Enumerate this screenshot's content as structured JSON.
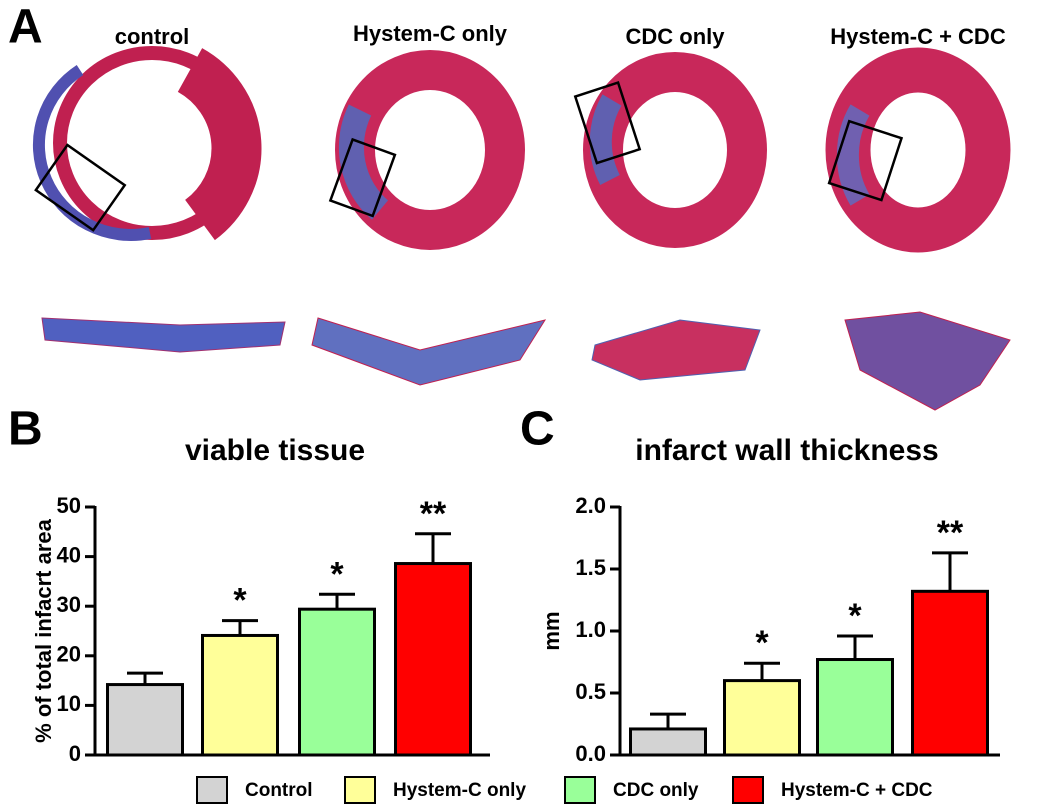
{
  "panel_a": {
    "panel_label": "A",
    "labels": [
      "control",
      "Hystem-C only",
      "CDC only",
      "Hystem-C + CDC"
    ]
  },
  "legend": [
    {
      "name": "Control",
      "color": "#d3d3d3"
    },
    {
      "name": "Hystem-C only",
      "color": "#ffff99"
    },
    {
      "name": "CDC only",
      "color": "#99ff99"
    },
    {
      "name": "Hystem-C + CDC",
      "color": "#ff0000"
    }
  ],
  "chart_data": [
    {
      "type": "bar",
      "panel_label": "B",
      "title": "viable tissue",
      "y_label": "% of total infacrt area",
      "values": [
        14.2,
        24.1,
        29.4,
        38.6
      ],
      "errors": [
        2.3,
        3.0,
        3.0,
        6.0
      ],
      "annotations": [
        null,
        "*",
        "*",
        "**"
      ],
      "ylim": [
        0,
        50
      ],
      "yticks": [
        0,
        10,
        20,
        30,
        40,
        50
      ]
    },
    {
      "type": "bar",
      "panel_label": "C",
      "title": "infarct wall thickness",
      "y_label": "mm",
      "values": [
        0.21,
        0.6,
        0.77,
        1.32
      ],
      "errors": [
        0.12,
        0.14,
        0.19,
        0.31
      ],
      "annotations": [
        null,
        "*",
        "*",
        "**"
      ],
      "ylim": [
        0,
        2
      ],
      "yticks": [
        {
          "value": 0,
          "label": "0.0"
        },
        0.5,
        {
          "value": 1,
          "label": "1.0"
        },
        1.5,
        {
          "value": 2,
          "label": "2.0"
        }
      ]
    }
  ]
}
